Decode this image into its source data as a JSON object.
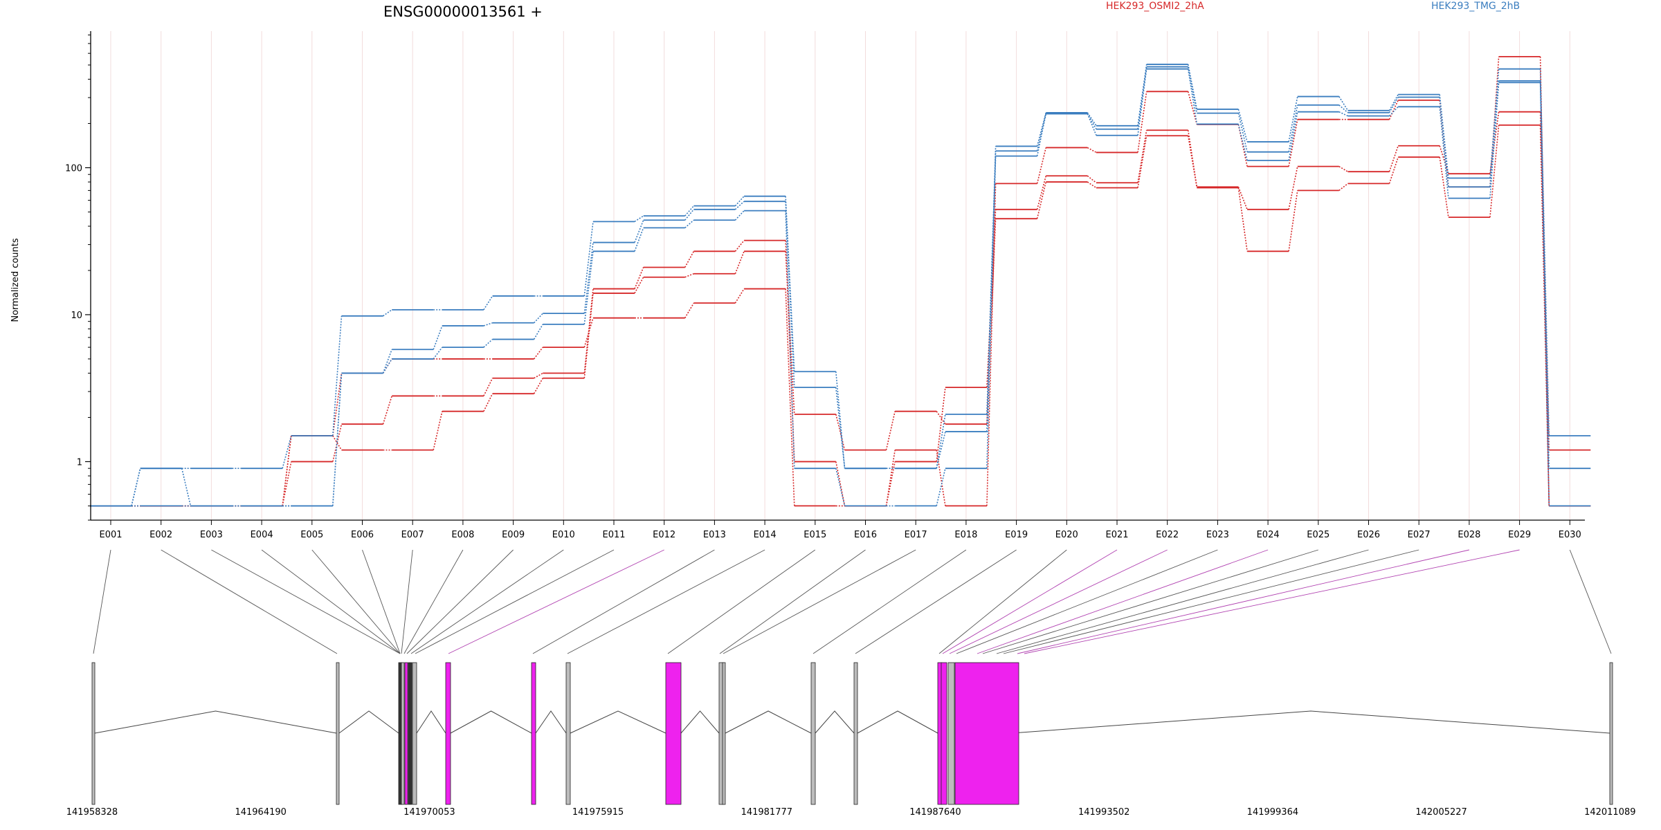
{
  "chart_data": {
    "type": "line",
    "title": "ENSG00000013561 +",
    "ylabel": "Normalized counts",
    "yscale": "log",
    "ylim": [
      0.4,
      850
    ],
    "yticks": [
      1,
      10,
      100
    ],
    "ytick_labels": [
      "1",
      "10",
      "100"
    ],
    "categories": [
      "E001",
      "E002",
      "E003",
      "E004",
      "E005",
      "E006",
      "E007",
      "E008",
      "E009",
      "E010",
      "E011",
      "E012",
      "E013",
      "E014",
      "E015",
      "E016",
      "E017",
      "E018",
      "E019",
      "E020",
      "E021",
      "E022",
      "E023",
      "E024",
      "E025",
      "E026",
      "E027",
      "E028",
      "E029",
      "E030"
    ],
    "legend": [
      {
        "label": "HEK293_OSMI2_2hA",
        "color": "#d62728"
      },
      {
        "label": "HEK293_TMG_2hB",
        "color": "#3a7dbf"
      }
    ],
    "series": [
      {
        "group": "HEK293_OSMI2_2hA",
        "values": [
          0.5,
          0.5,
          0.5,
          0.5,
          1.0,
          1.8,
          2.8,
          2.8,
          3.7,
          4.0,
          15,
          21,
          27,
          32,
          1.0,
          0.5,
          1.0,
          3.2,
          52,
          88,
          79,
          180,
          74,
          52,
          102,
          94,
          141,
          91,
          240,
          1.2
        ]
      },
      {
        "group": "HEK293_OSMI2_2hA",
        "values": [
          0.5,
          0.5,
          0.5,
          0.5,
          1.5,
          1.2,
          1.2,
          2.2,
          2.9,
          3.7,
          14,
          18,
          19,
          27,
          2.1,
          1.2,
          2.2,
          1.8,
          45,
          80,
          73,
          165,
          73,
          27,
          70,
          78,
          118,
          46,
          195,
          0.5
        ]
      },
      {
        "group": "HEK293_OSMI2_2hA",
        "values": [
          0.5,
          0.5,
          0.5,
          0.5,
          1.5,
          4.0,
          5.0,
          5.0,
          5.0,
          6.0,
          9.5,
          9.5,
          12,
          15,
          0.5,
          0.5,
          1.2,
          0.5,
          78,
          137,
          127,
          330,
          197,
          102,
          213,
          213,
          288,
          74,
          570,
          0.5
        ]
      },
      {
        "group": "HEK293_TMG_2hB",
        "values": [
          0.5,
          0.9,
          0.9,
          0.9,
          1.5,
          9.8,
          10.8,
          10.8,
          13.4,
          13.4,
          43,
          47,
          55,
          64,
          4.1,
          0.9,
          0.9,
          1.6,
          140,
          237,
          193,
          505,
          250,
          150,
          305,
          245,
          315,
          85,
          470,
          1.5
        ]
      },
      {
        "group": "HEK293_TMG_2hB",
        "values": [
          0.5,
          0.5,
          0.5,
          0.5,
          0.5,
          4.0,
          5.8,
          8.4,
          8.8,
          10.2,
          31,
          44,
          52,
          59,
          3.2,
          0.9,
          0.9,
          2.1,
          130,
          233,
          183,
          486,
          235,
          128,
          267,
          237,
          302,
          74,
          390,
          0.9
        ]
      },
      {
        "group": "HEK293_TMG_2hB",
        "values": [
          0.5,
          0.9,
          0.5,
          0.5,
          0.5,
          4.0,
          5.0,
          6.0,
          6.8,
          8.6,
          27,
          39,
          44,
          51,
          0.9,
          0.5,
          0.5,
          0.9,
          120,
          233,
          166,
          470,
          198,
          112,
          240,
          225,
          260,
          62,
          380,
          0.5
        ]
      }
    ],
    "gene_model": {
      "coordinate_labels": [
        "141958328",
        "141964190",
        "141970053",
        "141975915",
        "141981777",
        "141987640",
        "141993502",
        "141999364",
        "142005227",
        "142011089"
      ],
      "exon_colors": [
        "#bdbdbd",
        "#bdbdbd",
        "#bdbdbd",
        "#bdbdbd",
        "#bdbdbd",
        "#bdbdbd",
        "#bdbdbd",
        "#bdbdbd",
        "#bdbdbd",
        "#bdbdbd",
        "#bdbdbd",
        "#ee22ee",
        "#bdbdbd",
        "#bdbdbd",
        "#bdbdbd",
        "#bdbdbd",
        "#bdbdbd",
        "#bdbdbd",
        "#bdbdbd",
        "#bdbdbd",
        "#ee22ee",
        "#ee22ee",
        "#bdbdbd",
        "#ee22ee",
        "#bdbdbd",
        "#bdbdbd",
        "#bdbdbd",
        "#ee22ee",
        "#ee22ee",
        "#bdbdbd"
      ],
      "connector_colors": {
        "normal": "#555555",
        "significant": "#b040b0"
      }
    }
  }
}
